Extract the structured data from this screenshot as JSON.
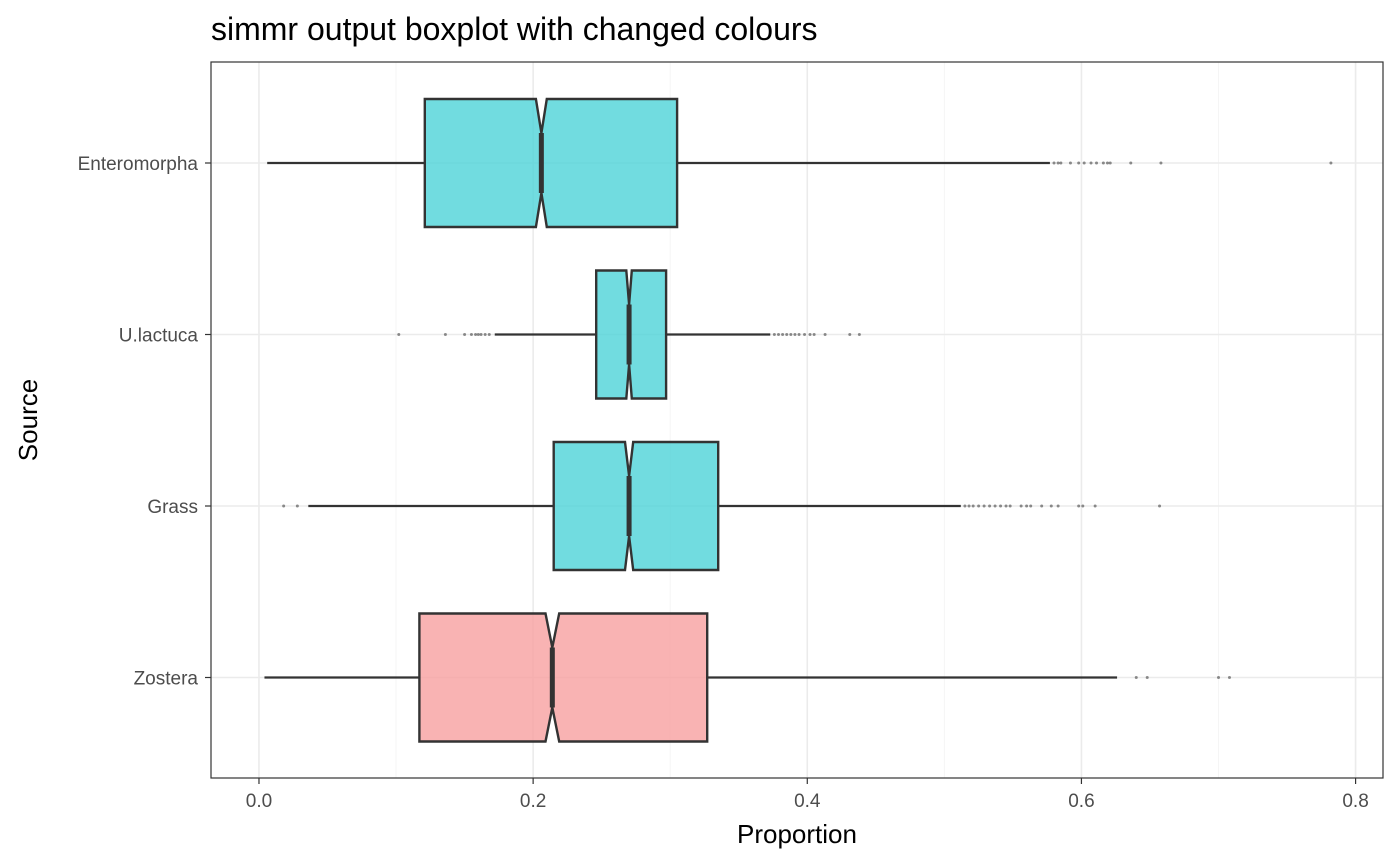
{
  "chart_data": {
    "type": "boxplot",
    "orientation": "horizontal",
    "notched": true,
    "title": "simmr output boxplot with changed colours",
    "xlabel": "Proportion",
    "ylabel": "Source",
    "xlim": [
      -0.035,
      0.82
    ],
    "xticks": [
      0.0,
      0.2,
      0.4,
      0.6,
      0.8
    ],
    "xtick_labels": [
      "0.0",
      "0.2",
      "0.4",
      "0.6",
      "0.8"
    ],
    "grid": true,
    "legend": "none",
    "categories": [
      "Enteromorpha",
      "U.lactuca",
      "Grass",
      "Zostera"
    ],
    "boxes": [
      {
        "category": "Enteromorpha",
        "whisker_low": 0.006,
        "q1": 0.121,
        "median": 0.206,
        "q3": 0.305,
        "whisker_high": 0.577,
        "notch_low": 0.202,
        "notch_high": 0.21,
        "fill": "#4dd3d8",
        "outliers": [
          0.58,
          0.583,
          0.585,
          0.592,
          0.598,
          0.602,
          0.607,
          0.611,
          0.616,
          0.619,
          0.621,
          0.636,
          0.658,
          0.782
        ]
      },
      {
        "category": "U.lactuca",
        "whisker_low": 0.172,
        "q1": 0.246,
        "median": 0.27,
        "q3": 0.297,
        "whisker_high": 0.373,
        "notch_low": 0.268,
        "notch_high": 0.272,
        "fill": "#4dd3d8",
        "outliers": [
          0.102,
          0.136,
          0.15,
          0.155,
          0.158,
          0.16,
          0.162,
          0.165,
          0.168,
          0.376,
          0.379,
          0.382,
          0.385,
          0.388,
          0.391,
          0.394,
          0.398,
          0.402,
          0.405,
          0.413,
          0.431,
          0.438
        ]
      },
      {
        "category": "Grass",
        "whisker_low": 0.036,
        "q1": 0.215,
        "median": 0.27,
        "q3": 0.335,
        "whisker_high": 0.512,
        "notch_low": 0.267,
        "notch_high": 0.273,
        "fill": "#4dd3d8",
        "outliers": [
          0.018,
          0.028,
          0.515,
          0.518,
          0.521,
          0.525,
          0.529,
          0.533,
          0.537,
          0.541,
          0.545,
          0.548,
          0.556,
          0.56,
          0.563,
          0.571,
          0.578,
          0.583,
          0.598,
          0.601,
          0.61,
          0.657
        ]
      },
      {
        "category": "Zostera",
        "whisker_low": 0.004,
        "q1": 0.117,
        "median": 0.214,
        "q3": 0.327,
        "whisker_high": 0.626,
        "notch_low": 0.209,
        "notch_high": 0.219,
        "fill": "#f8a0a0",
        "outliers": [
          0.64,
          0.648,
          0.7,
          0.708
        ]
      }
    ],
    "colors": {
      "panel_border": "#333333",
      "grid_major": "#ebebeb",
      "grid_minor": "#f5f5f5",
      "box_edge": "#333333",
      "tick_mark": "#333333"
    }
  }
}
